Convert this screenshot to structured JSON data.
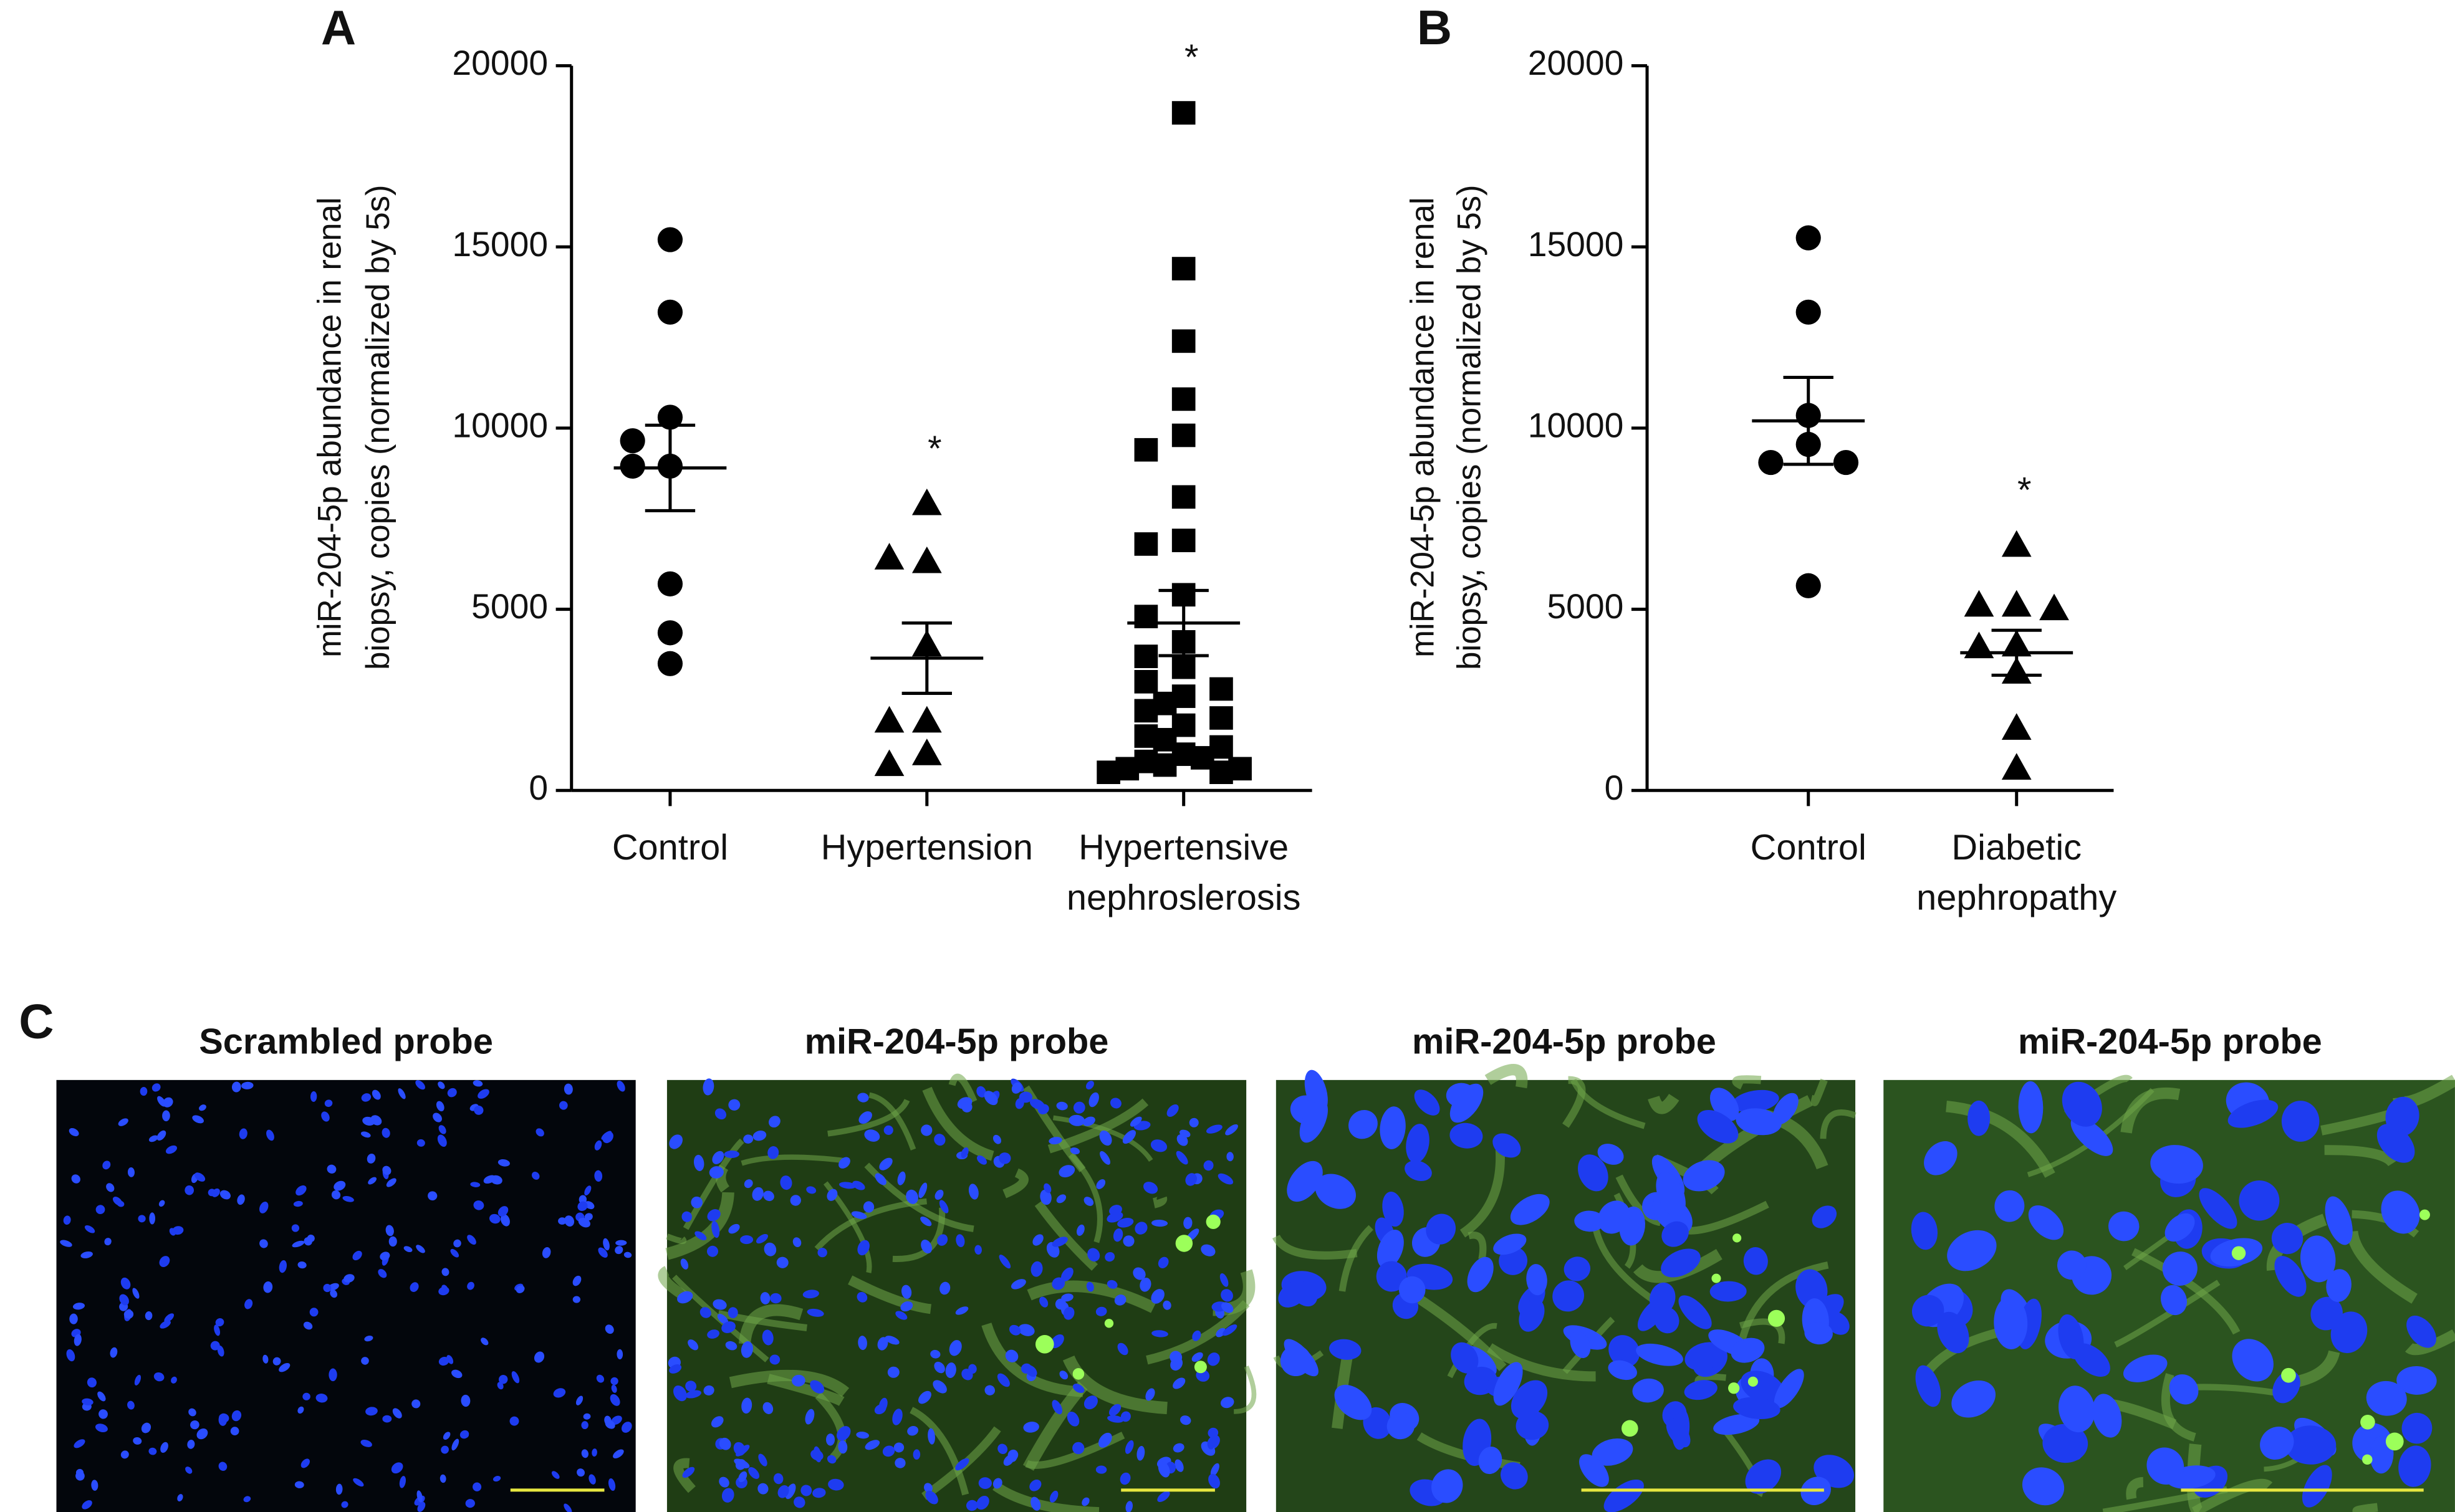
{
  "chart_data": [
    {
      "type": "dot",
      "panel": "A",
      "ylabel": [
        "miR-204-5p abundance in renal",
        "biopsy, copies (normalized by 5s)"
      ],
      "categories": [
        [
          "Control"
        ],
        [
          "Hypertension"
        ],
        [
          "Hypertensive",
          "nephroslerosis"
        ]
      ],
      "groups": [
        {
          "marker": "circle",
          "values": [
            15200,
            13200,
            10300,
            9650,
            8950,
            8950,
            5700,
            4350,
            3500
          ],
          "mean": 8900,
          "sem": 1180
        },
        {
          "marker": "triangle",
          "values": [
            7900,
            6300,
            6400,
            4000,
            1900,
            1900,
            1000,
            700
          ],
          "mean": 3650,
          "sem": 970,
          "annotation": "*"
        },
        {
          "marker": "square",
          "values": [
            18700,
            14400,
            12400,
            10800,
            9800,
            9400,
            8100,
            6900,
            6800,
            5400,
            4800,
            4100,
            3700,
            3400,
            3000,
            2800,
            2600,
            2400,
            2200,
            2000,
            1800,
            1500,
            1400,
            1200,
            1000,
            900,
            800,
            700,
            600,
            600,
            500,
            500
          ],
          "mean": 4620,
          "sem": 900,
          "annotation": "*"
        }
      ],
      "color": "#000000",
      "ylim": [
        0,
        20000
      ],
      "yticks": [
        0,
        5000,
        10000,
        15000,
        20000
      ]
    },
    {
      "type": "dot",
      "panel": "B",
      "ylabel": [
        "miR-204-5p abundance in renal",
        "biopsy, copies (normalized by 5s)"
      ],
      "categories": [
        [
          "Control"
        ],
        [
          "Diabetic",
          "nephropathy"
        ]
      ],
      "groups": [
        {
          "marker": "circle",
          "values": [
            15250,
            13200,
            10350,
            9550,
            9050,
            9050,
            5650
          ],
          "mean": 10200,
          "sem": 1200
        },
        {
          "marker": "triangle",
          "values": [
            6750,
            5100,
            5100,
            5000,
            4000,
            3950,
            3250,
            1700,
            600
          ],
          "mean": 3800,
          "sem": 620,
          "annotation": "*"
        }
      ],
      "color": "#000000",
      "ylim": [
        0,
        20000
      ],
      "yticks": [
        0,
        5000,
        10000,
        15000,
        20000
      ]
    }
  ],
  "panel_c": {
    "label": "C",
    "images": [
      {
        "title": "Scrambled probe"
      },
      {
        "title": "miR-204-5p probe"
      },
      {
        "title": "miR-204-5p probe"
      },
      {
        "title": "miR-204-5p probe"
      }
    ]
  }
}
